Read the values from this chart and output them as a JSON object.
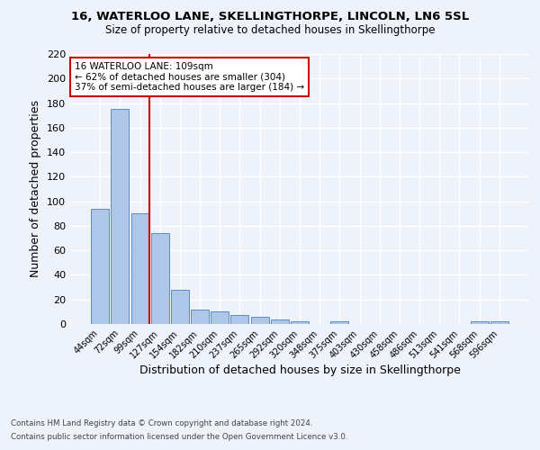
{
  "title": "16, WATERLOO LANE, SKELLINGTHORPE, LINCOLN, LN6 5SL",
  "subtitle": "Size of property relative to detached houses in Skellingthorpe",
  "xlabel": "Distribution of detached houses by size in Skellingthorpe",
  "ylabel": "Number of detached properties",
  "footnote1": "Contains HM Land Registry data © Crown copyright and database right 2024.",
  "footnote2": "Contains public sector information licensed under the Open Government Licence v3.0.",
  "bar_labels": [
    "44sqm",
    "72sqm",
    "99sqm",
    "127sqm",
    "154sqm",
    "182sqm",
    "210sqm",
    "237sqm",
    "265sqm",
    "292sqm",
    "320sqm",
    "348sqm",
    "375sqm",
    "403sqm",
    "430sqm",
    "458sqm",
    "486sqm",
    "513sqm",
    "541sqm",
    "568sqm",
    "596sqm"
  ],
  "bar_values": [
    94,
    175,
    90,
    74,
    28,
    12,
    10,
    7,
    6,
    4,
    2,
    0,
    2,
    0,
    0,
    0,
    0,
    0,
    0,
    2,
    2
  ],
  "bar_color": "#aec6e8",
  "bar_edgecolor": "#5a8fc4",
  "ylim": [
    0,
    220
  ],
  "yticks": [
    0,
    20,
    40,
    60,
    80,
    100,
    120,
    140,
    160,
    180,
    200,
    220
  ],
  "property_bin_index": 2,
  "vline_color": "#cc0000",
  "annotation_line1": "16 WATERLOO LANE: 109sqm",
  "annotation_line2": "← 62% of detached houses are smaller (304)",
  "annotation_line3": "37% of semi-detached houses are larger (184) →",
  "annotation_box_color": "#ffffff",
  "annotation_box_edgecolor": "#cc0000",
  "background_color": "#eef2fb",
  "grid_color": "#ffffff"
}
